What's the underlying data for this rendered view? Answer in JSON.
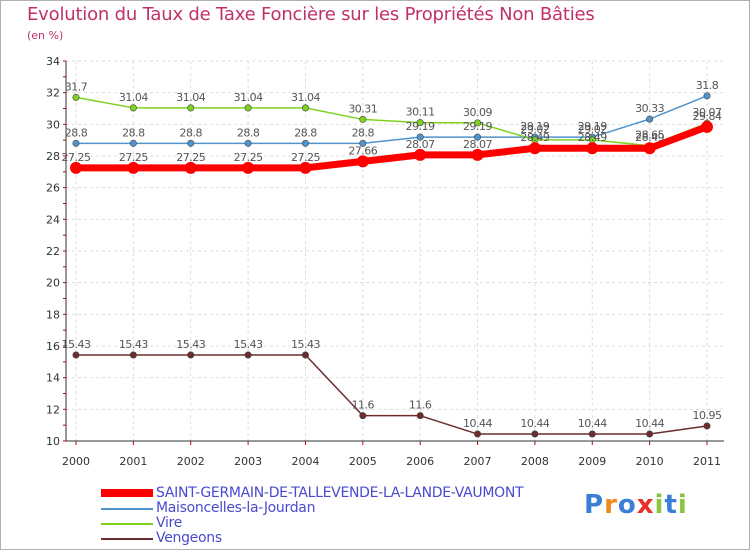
{
  "chart_data": {
    "type": "line",
    "title": "Evolution du Taux de Taxe Foncière sur les Propriétés Non Bâties",
    "ylabel": "(en %)",
    "xlabel": "",
    "categories": [
      "2000",
      "2001",
      "2002",
      "2003",
      "2004",
      "2005",
      "2006",
      "2007",
      "2008",
      "2009",
      "2010",
      "2011"
    ],
    "ylim": [
      10,
      34
    ],
    "yticks": [
      10,
      12,
      14,
      16,
      18,
      20,
      22,
      24,
      26,
      28,
      30,
      32,
      34
    ],
    "grid": true,
    "legend_position": "bottom-left",
    "series": [
      {
        "name": "SAINT-GERMAIN-DE-TALLEVENDE-LA-LANDE-VAUMONT",
        "color": "#ff0000",
        "width": 7,
        "values": [
          27.25,
          27.25,
          27.25,
          27.25,
          27.25,
          27.66,
          28.07,
          28.07,
          28.49,
          28.49,
          28.49,
          29.84
        ],
        "labels": [
          "27.25",
          "27.25",
          "27.25",
          "27.25",
          "27.25",
          "27.66",
          "28.07",
          "28.07",
          "28.49",
          "28.49",
          "28.49",
          "29.84"
        ]
      },
      {
        "name": "Maisoncelles-la-Jourdan",
        "color": "#4f94cd",
        "width": 1.5,
        "values": [
          28.8,
          28.8,
          28.8,
          28.8,
          28.8,
          28.8,
          29.19,
          29.19,
          29.19,
          29.19,
          30.33,
          31.8
        ],
        "labels": [
          "28.8",
          "28.8",
          "28.8",
          "28.8",
          "28.8",
          "28.8",
          "29.19",
          "29.19",
          "29.19",
          "29.19",
          "30.33",
          "31.8"
        ]
      },
      {
        "name": "Vire",
        "color": "#7ed321",
        "width": 1.5,
        "values": [
          31.7,
          31.04,
          31.04,
          31.04,
          31.04,
          30.31,
          30.11,
          30.09,
          29.02,
          29.02,
          28.65,
          30.07
        ],
        "labels": [
          "31.7",
          "31.04",
          "31.04",
          "31.04",
          "31.04",
          "30.31",
          "30.11",
          "30.09",
          "29.02",
          "29.02",
          "28.65",
          "30.07"
        ]
      },
      {
        "name": "Vengeons",
        "color": "#6b2d2d",
        "width": 1.5,
        "values": [
          15.43,
          15.43,
          15.43,
          15.43,
          15.43,
          11.6,
          11.6,
          10.44,
          10.44,
          10.44,
          10.44,
          10.95
        ],
        "labels": [
          "15.43",
          "15.43",
          "15.43",
          "15.43",
          "15.43",
          "11.6",
          "11.6",
          "10.44",
          "10.44",
          "10.44",
          "10.44",
          "10.95"
        ]
      }
    ]
  },
  "logo": {
    "text": "Proxiti",
    "colors": [
      "#3a7fd5",
      "#f08a1c",
      "#3a7fd5",
      "#e8302a",
      "#8cc63f",
      "#3a7fd5",
      "#8cc63f"
    ]
  }
}
